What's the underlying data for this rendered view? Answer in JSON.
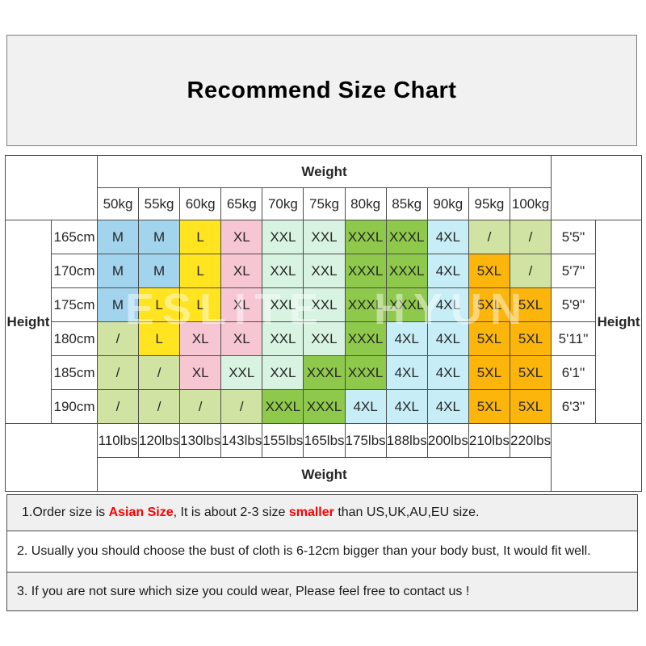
{
  "title_box": {
    "title": "Recommend Size Chart"
  },
  "watermark": "ESLITE HYUN",
  "colors": {
    "blue": "#a3d4ee",
    "yellow": "#ffe41f",
    "pink": "#f7c6d3",
    "mint": "#d8f3e1",
    "green": "#8ec94b",
    "cyan": "#c7eef7",
    "orange": "#fbb50b",
    "palegreen": "#d1e3a3",
    "note_red": "#ff0000",
    "box_gray": "#f0f0f0",
    "border": "#4d4d4d"
  },
  "chart_data": {
    "type": "table",
    "title": "Recommend Size Chart",
    "weight_header": "Weight",
    "weight_footer": "Weight",
    "height_label": "Height",
    "kg_labels": [
      "50kg",
      "55kg",
      "60kg",
      "65kg",
      "70kg",
      "75kg",
      "80kg",
      "85kg",
      "90kg",
      "95kg",
      "100kg"
    ],
    "lbs_labels": [
      "110lbs",
      "120lbs",
      "130lbs",
      "143lbs",
      "155lbs",
      "165lbs",
      "175lbs",
      "188lbs",
      "200lbs",
      "210lbs",
      "220lbs"
    ],
    "rows": [
      {
        "cm": "165cm",
        "ftin": "5'5''",
        "cells": [
          {
            "v": "M",
            "c": "blue"
          },
          {
            "v": "M",
            "c": "blue"
          },
          {
            "v": "L",
            "c": "yellow"
          },
          {
            "v": "XL",
            "c": "pink"
          },
          {
            "v": "XXL",
            "c": "mint"
          },
          {
            "v": "XXL",
            "c": "mint"
          },
          {
            "v": "XXXL",
            "c": "green"
          },
          {
            "v": "XXXL",
            "c": "green"
          },
          {
            "v": "4XL",
            "c": "cyan"
          },
          {
            "v": "/",
            "c": "palegreen"
          },
          {
            "v": "/",
            "c": "palegreen"
          }
        ]
      },
      {
        "cm": "170cm",
        "ftin": "5'7''",
        "cells": [
          {
            "v": "M",
            "c": "blue"
          },
          {
            "v": "M",
            "c": "blue"
          },
          {
            "v": "L",
            "c": "yellow"
          },
          {
            "v": "XL",
            "c": "pink"
          },
          {
            "v": "XXL",
            "c": "mint"
          },
          {
            "v": "XXL",
            "c": "mint"
          },
          {
            "v": "XXXL",
            "c": "green"
          },
          {
            "v": "XXXL",
            "c": "green"
          },
          {
            "v": "4XL",
            "c": "cyan"
          },
          {
            "v": "5XL",
            "c": "orange"
          },
          {
            "v": "/",
            "c": "palegreen"
          }
        ]
      },
      {
        "cm": "175cm",
        "ftin": "5'9''",
        "cells": [
          {
            "v": "M",
            "c": "blue"
          },
          {
            "v": "L",
            "c": "yellow"
          },
          {
            "v": "L",
            "c": "yellow"
          },
          {
            "v": "XL",
            "c": "pink"
          },
          {
            "v": "XXL",
            "c": "mint"
          },
          {
            "v": "XXL",
            "c": "mint"
          },
          {
            "v": "XXXL",
            "c": "green"
          },
          {
            "v": "XXXL",
            "c": "green"
          },
          {
            "v": "4XL",
            "c": "cyan"
          },
          {
            "v": "5XL",
            "c": "orange"
          },
          {
            "v": "5XL",
            "c": "orange"
          }
        ]
      },
      {
        "cm": "180cm",
        "ftin": "5'11''",
        "cells": [
          {
            "v": "/",
            "c": "palegreen"
          },
          {
            "v": "L",
            "c": "yellow"
          },
          {
            "v": "XL",
            "c": "pink"
          },
          {
            "v": "XL",
            "c": "pink"
          },
          {
            "v": "XXL",
            "c": "mint"
          },
          {
            "v": "XXL",
            "c": "mint"
          },
          {
            "v": "XXXL",
            "c": "green"
          },
          {
            "v": "4XL",
            "c": "cyan"
          },
          {
            "v": "4XL",
            "c": "cyan"
          },
          {
            "v": "5XL",
            "c": "orange"
          },
          {
            "v": "5XL",
            "c": "orange"
          }
        ]
      },
      {
        "cm": "185cm",
        "ftin": "6'1''",
        "cells": [
          {
            "v": "/",
            "c": "palegreen"
          },
          {
            "v": "/",
            "c": "palegreen"
          },
          {
            "v": "XL",
            "c": "pink"
          },
          {
            "v": "XXL",
            "c": "mint"
          },
          {
            "v": "XXL",
            "c": "mint"
          },
          {
            "v": "XXXL",
            "c": "green"
          },
          {
            "v": "XXXL",
            "c": "green"
          },
          {
            "v": "4XL",
            "c": "cyan"
          },
          {
            "v": "4XL",
            "c": "cyan"
          },
          {
            "v": "5XL",
            "c": "orange"
          },
          {
            "v": "5XL",
            "c": "orange"
          }
        ]
      },
      {
        "cm": "190cm",
        "ftin": "6'3''",
        "cells": [
          {
            "v": "/",
            "c": "palegreen"
          },
          {
            "v": "/",
            "c": "palegreen"
          },
          {
            "v": "/",
            "c": "palegreen"
          },
          {
            "v": "/",
            "c": "palegreen"
          },
          {
            "v": "XXXL",
            "c": "green"
          },
          {
            "v": "XXXL",
            "c": "green"
          },
          {
            "v": "4XL",
            "c": "cyan"
          },
          {
            "v": "4XL",
            "c": "cyan"
          },
          {
            "v": "4XL",
            "c": "cyan"
          },
          {
            "v": "5XL",
            "c": "orange"
          },
          {
            "v": "5XL",
            "c": "orange"
          }
        ]
      }
    ]
  },
  "notes": [
    {
      "bg": "gray",
      "segments": [
        {
          "t": "1.Order size is ",
          "red": false
        },
        {
          "t": "Asian Size",
          "red": true
        },
        {
          "t": ", It is about 2-3 size ",
          "red": false
        },
        {
          "t": "smaller",
          "red": true
        },
        {
          "t": " than US,UK,AU,EU size.",
          "red": false
        }
      ]
    },
    {
      "bg": "white",
      "segments": [
        {
          "t": "2. Usually you should choose the bust of cloth is 6-12cm bigger than your body bust, It would fit well.",
          "red": false
        }
      ]
    },
    {
      "bg": "gray",
      "segments": [
        {
          "t": "3. If you are not sure which size you could wear, Please feel free to contact us !",
          "red": false
        }
      ]
    }
  ]
}
